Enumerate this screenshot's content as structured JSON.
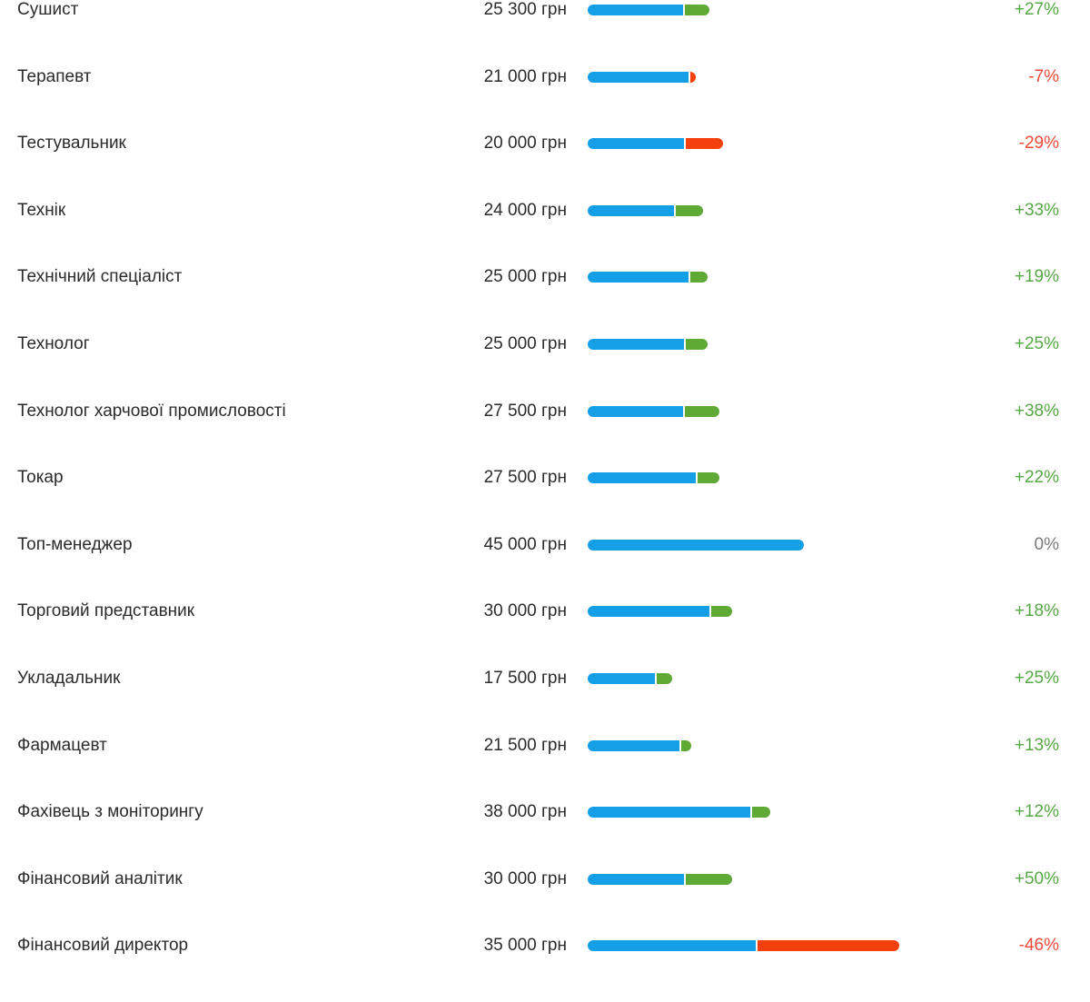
{
  "colors": {
    "bar_main": "#159fe6",
    "bar_positive": "#5fa935",
    "bar_negative": "#f4400c",
    "text": "#2b2b2b",
    "change_positive": "#57a846",
    "change_negative": "#ef4b3b",
    "change_zero": "#7a7a7a"
  },
  "chart_data": {
    "type": "bar",
    "orientation": "horizontal",
    "unit": "грн",
    "categories": [
      "Сушист",
      "Терапевт",
      "Тестувальник",
      "Технік",
      "Технічний спеціаліст",
      "Технолог",
      "Технолог харчової промисловості",
      "Токар",
      "Топ-менеджер",
      "Торговий представник",
      "Укладальник",
      "Фармацевт",
      "Фахівець з моніторингу",
      "Фінансовий аналітик",
      "Фінансовий директор"
    ],
    "values": [
      25300,
      21000,
      20000,
      24000,
      25000,
      25000,
      27500,
      27500,
      45000,
      30000,
      17500,
      21500,
      38000,
      30000,
      35000
    ],
    "value_labels": [
      "25 300 грн",
      "21 000 грн",
      "20 000 грн",
      "24 000 грн",
      "25 000 грн",
      "25 000 грн",
      "27 500 грн",
      "27 500 грн",
      "45 000 грн",
      "30 000 грн",
      "17 500 грн",
      "21 500 грн",
      "38 000 грн",
      "30 000 грн",
      "35 000 грн"
    ],
    "change_percent": [
      27,
      -7,
      -29,
      33,
      19,
      25,
      38,
      22,
      0,
      18,
      25,
      13,
      12,
      50,
      -46
    ],
    "change_labels": [
      "+27%",
      "-7%",
      "-29%",
      "+33%",
      "+19%",
      "+25%",
      "+38%",
      "+22%",
      "0%",
      "+18%",
      "+25%",
      "+13%",
      "+12%",
      "+50%",
      "-46%"
    ]
  }
}
